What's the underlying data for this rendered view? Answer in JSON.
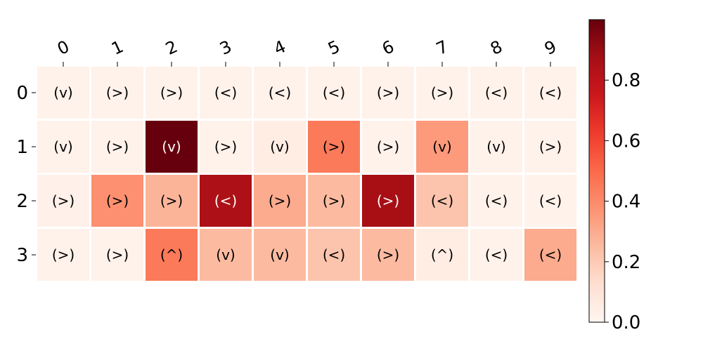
{
  "chart_data": {
    "type": "heatmap",
    "x_ticks": [
      "0",
      "1",
      "2",
      "3",
      "4",
      "5",
      "6",
      "7",
      "8",
      "9"
    ],
    "y_ticks": [
      "0",
      "1",
      "2",
      "3"
    ],
    "values": [
      [
        0.02,
        0.02,
        0.02,
        0.02,
        0.02,
        0.02,
        0.02,
        0.02,
        0.02,
        0.02
      ],
      [
        0.02,
        0.02,
        1.0,
        0.02,
        0.05,
        0.45,
        0.02,
        0.35,
        0.02,
        0.02
      ],
      [
        0.03,
        0.38,
        0.27,
        0.85,
        0.3,
        0.25,
        0.87,
        0.22,
        0.02,
        0.02
      ],
      [
        0.02,
        0.02,
        0.45,
        0.25,
        0.25,
        0.22,
        0.25,
        0.05,
        0.02,
        0.3
      ]
    ],
    "labels": [
      [
        "(v)",
        "(>)",
        "(>)",
        "(<)",
        "(<)",
        "(<)",
        "(>)",
        "(>)",
        "(<)",
        "(<)"
      ],
      [
        "(v)",
        "(>)",
        "(v)",
        "(>)",
        "(v)",
        "(>)",
        "(>)",
        "(v)",
        "(v)",
        "(>)"
      ],
      [
        "(>)",
        "(>)",
        "(>)",
        "(<)",
        "(>)",
        "(>)",
        "(>)",
        "(<)",
        "(<)",
        "(<)"
      ],
      [
        "(>)",
        "(>)",
        "(^)",
        "(v)",
        "(v)",
        "(<)",
        "(>)",
        "(^)",
        "(<)",
        "(<)"
      ]
    ],
    "colorbar": {
      "colormap": "Reds",
      "range": [
        0.0,
        1.0
      ],
      "ticks": [
        0.0,
        0.2,
        0.4,
        0.6,
        0.8
      ],
      "tick_labels": [
        "0.0",
        "0.2",
        "0.4",
        "0.6",
        "0.8"
      ]
    },
    "x_axis_position": "top",
    "grid": false
  }
}
